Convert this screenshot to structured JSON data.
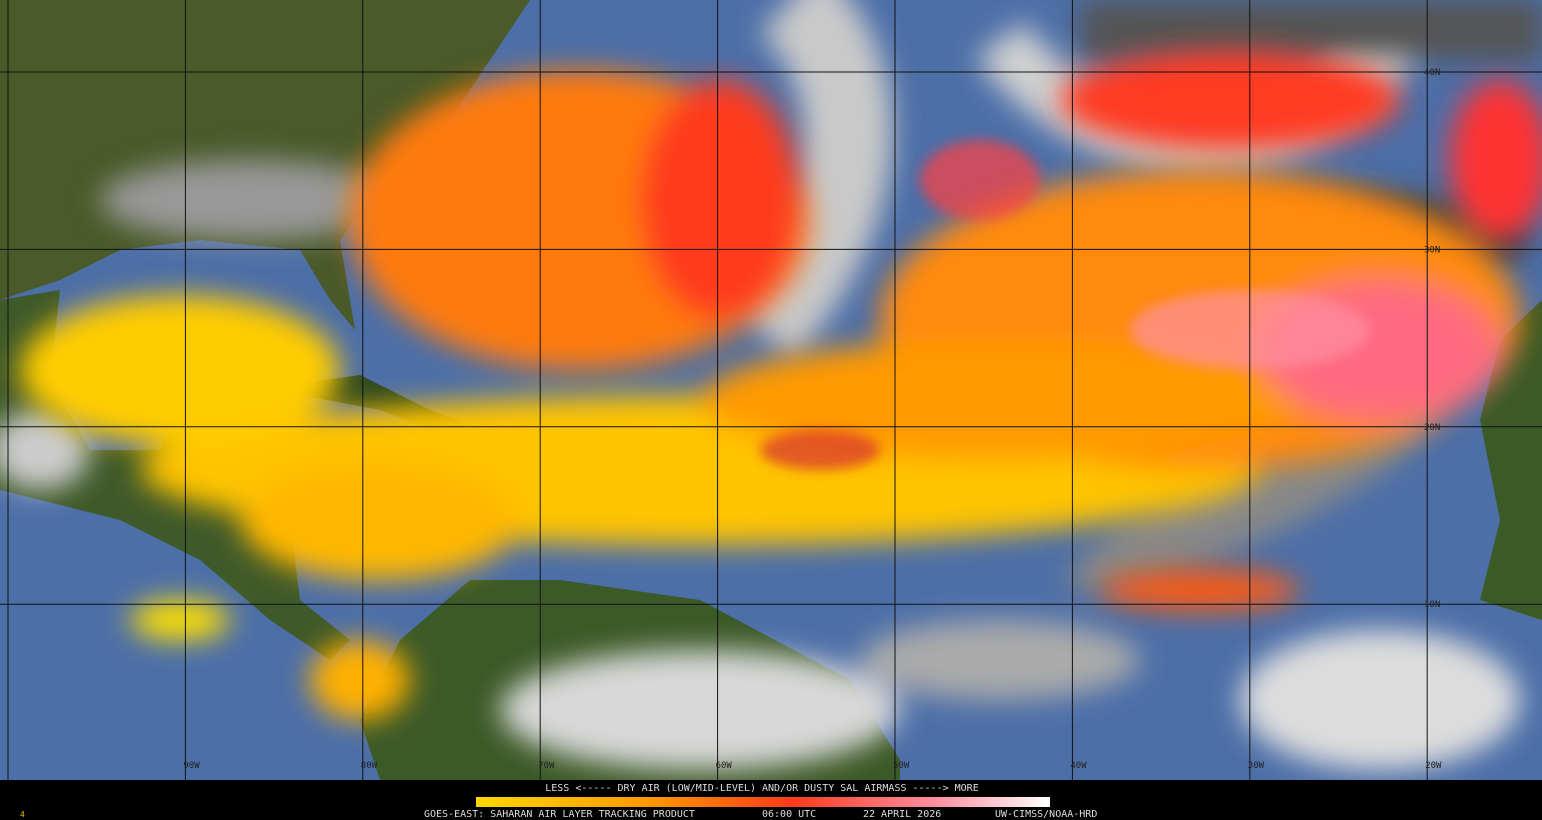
{
  "map": {
    "grid_labels": {
      "longitude": [
        "90W",
        "80W",
        "70W",
        "60W",
        "50W",
        "40W",
        "30W",
        "20W"
      ],
      "latitude": [
        "40N",
        "30N",
        "20N",
        "10N"
      ]
    },
    "legend": {
      "text": "LESS <----- DRY AIR (LOW/MID-LEVEL) AND/OR DUSTY SAL AIRMASS -----> MORE"
    },
    "footer": {
      "frame": "4",
      "product": "GOES-EAST: SAHARAN AIR LAYER TRACKING PRODUCT",
      "time": "06:00 UTC",
      "date": "22 APRIL 2026",
      "credit": "UW-CIMSS/NOAA-HRD"
    }
  }
}
